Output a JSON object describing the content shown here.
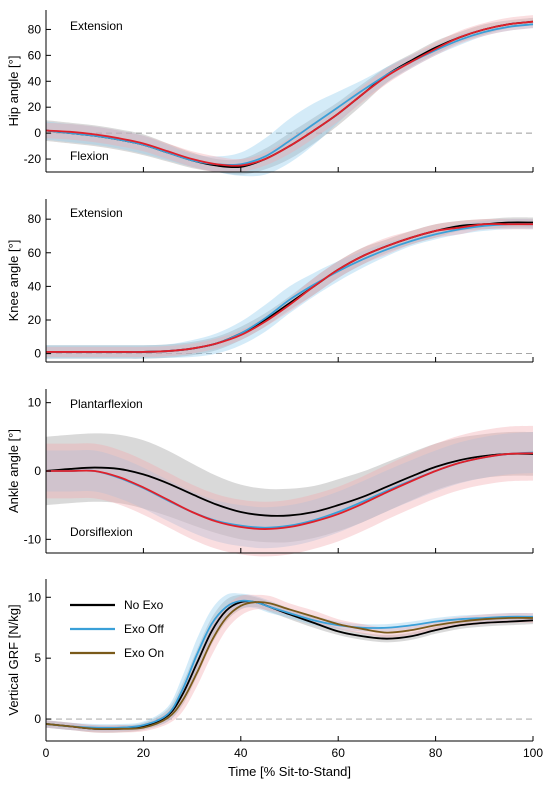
{
  "chart_data": [
    {
      "type": "line",
      "ylabel": "Hip angle [°]",
      "xlabel": "",
      "xlim": [
        0,
        100
      ],
      "ylim": [
        -30,
        95
      ],
      "yticks": [
        -20,
        0,
        20,
        40,
        60,
        80
      ],
      "zero_line": true,
      "annotations": [
        {
          "text": "Extension",
          "pos": "top-left"
        },
        {
          "text": "Flexion",
          "pos": "bottom-left"
        }
      ],
      "x": [
        0,
        5,
        10,
        15,
        20,
        25,
        30,
        35,
        40,
        45,
        50,
        55,
        60,
        65,
        70,
        75,
        80,
        85,
        90,
        95,
        100
      ],
      "series": [
        {
          "name": "No Exo",
          "color": "#000000",
          "band_color": "#9a9a9a",
          "values": [
            2,
            0,
            -2,
            -5,
            -9,
            -15,
            -21,
            -25,
            -26,
            -20,
            -10,
            2,
            15,
            30,
            45,
            56,
            66,
            74,
            80,
            84,
            86
          ],
          "band": [
            8,
            8,
            8,
            8,
            8,
            7,
            6,
            5,
            6,
            8,
            10,
            10,
            9,
            8,
            6,
            5,
            5,
            4,
            4,
            3,
            3
          ]
        },
        {
          "name": "Exo Off",
          "color": "#3aa0d8",
          "band_color": "#8fcbed",
          "values": [
            2,
            0,
            -2,
            -5,
            -9,
            -15,
            -21,
            -24,
            -24,
            -18,
            -6,
            7,
            20,
            33,
            45,
            55,
            64,
            72,
            78,
            82,
            84
          ],
          "band": [
            7,
            7,
            7,
            7,
            7,
            6,
            5,
            6,
            9,
            14,
            17,
            16,
            12,
            8,
            6,
            5,
            4,
            4,
            3,
            3,
            3
          ]
        },
        {
          "name": "Exo On",
          "color": "#e0202a",
          "band_color": "#f2a9ad",
          "values": [
            2,
            1,
            -1,
            -4,
            -8,
            -14,
            -20,
            -24,
            -25,
            -20,
            -10,
            2,
            15,
            30,
            44,
            55,
            65,
            74,
            80,
            84,
            86
          ],
          "band": [
            6,
            6,
            6,
            6,
            6,
            6,
            6,
            6,
            5,
            5,
            6,
            6,
            6,
            6,
            6,
            5,
            5,
            5,
            5,
            5,
            5
          ]
        }
      ]
    },
    {
      "type": "line",
      "ylabel": "Knee angle [°]",
      "xlabel": "",
      "xlim": [
        0,
        100
      ],
      "ylim": [
        -5,
        92
      ],
      "yticks": [
        0,
        20,
        40,
        60,
        80
      ],
      "zero_line": true,
      "annotations": [
        {
          "text": "Extension",
          "pos": "top-left"
        }
      ],
      "x": [
        0,
        5,
        10,
        15,
        20,
        25,
        30,
        35,
        40,
        45,
        50,
        55,
        60,
        65,
        70,
        75,
        80,
        85,
        90,
        95,
        100
      ],
      "series": [
        {
          "name": "No Exo",
          "color": "#000000",
          "band_color": "#9a9a9a",
          "values": [
            1,
            1,
            1,
            1,
            1,
            1.5,
            3,
            6,
            12,
            20,
            30,
            40,
            50,
            58,
            64,
            69,
            73,
            76,
            77,
            78,
            78
          ],
          "band": [
            4,
            4,
            4,
            4,
            4,
            4,
            4,
            4,
            4,
            4,
            4,
            5,
            5,
            5,
            4,
            4,
            4,
            3,
            3,
            3,
            3
          ]
        },
        {
          "name": "Exo Off",
          "color": "#3aa0d8",
          "band_color": "#8fcbed",
          "values": [
            1,
            1,
            1,
            1,
            1,
            1.5,
            3,
            6,
            12,
            21,
            32,
            41,
            49,
            56,
            62,
            67,
            71,
            74,
            76,
            77,
            77
          ],
          "band": [
            4,
            4,
            4,
            4,
            4,
            4,
            5,
            6,
            7,
            8,
            8,
            7,
            6,
            5,
            4,
            3,
            3,
            3,
            3,
            3,
            3
          ]
        },
        {
          "name": "Exo On",
          "color": "#e0202a",
          "band_color": "#f2a9ad",
          "values": [
            1,
            1,
            1,
            1,
            1,
            1.5,
            3,
            6,
            11,
            19,
            29,
            40,
            50,
            58,
            64,
            69,
            73,
            75,
            77,
            77,
            77
          ],
          "band": [
            3,
            3,
            3,
            3,
            3,
            3,
            3,
            3,
            3,
            3,
            4,
            5,
            5,
            5,
            5,
            4,
            4,
            4,
            3,
            3,
            3
          ]
        }
      ]
    },
    {
      "type": "line",
      "ylabel": "Ankle angle [°]",
      "xlabel": "",
      "xlim": [
        0,
        100
      ],
      "ylim": [
        -12,
        12
      ],
      "yticks": [
        -10,
        0,
        10
      ],
      "zero_line": false,
      "annotations": [
        {
          "text": "Plantarflexion",
          "pos": "top-left"
        },
        {
          "text": "Dorsiflexion",
          "pos": "bottom-left"
        }
      ],
      "x": [
        0,
        5,
        10,
        15,
        20,
        25,
        30,
        35,
        40,
        45,
        50,
        55,
        60,
        65,
        70,
        75,
        80,
        85,
        90,
        95,
        100
      ],
      "series": [
        {
          "name": "No Exo",
          "color": "#000000",
          "band_color": "#9a9a9a",
          "values": [
            0,
            0.3,
            0.5,
            0.3,
            -0.5,
            -1.8,
            -3.4,
            -4.9,
            -6,
            -6.5,
            -6.5,
            -6,
            -5,
            -3.8,
            -2.3,
            -0.8,
            0.6,
            1.6,
            2.2,
            2.5,
            2.5
          ],
          "band": [
            5,
            5,
            5,
            5,
            5,
            4.8,
            4.5,
            4.2,
            4,
            3.9,
            3.9,
            3.8,
            3.8,
            3.7,
            3.6,
            3.5,
            3.4,
            3.3,
            3.2,
            3.2,
            3.2
          ]
        },
        {
          "name": "Exo Off",
          "color": "#3aa0d8",
          "band_color": "#8fcbed",
          "values": [
            0,
            0,
            0,
            -1,
            -2.5,
            -4.3,
            -6,
            -7.3,
            -8,
            -8.3,
            -8,
            -7.2,
            -6,
            -4.5,
            -2.9,
            -1.4,
            0,
            1.2,
            2,
            2.5,
            2.7
          ],
          "band": [
            3,
            3,
            3,
            3,
            3,
            3,
            3,
            3,
            3,
            3,
            3,
            3,
            3,
            3,
            3,
            3,
            3,
            3,
            3,
            3,
            3
          ]
        },
        {
          "name": "Exo On",
          "color": "#e0202a",
          "band_color": "#f2a9ad",
          "values": [
            0,
            0,
            0,
            -0.9,
            -2.4,
            -4.2,
            -6,
            -7.4,
            -8.2,
            -8.5,
            -8.2,
            -7.4,
            -6.3,
            -4.8,
            -3.1,
            -1.5,
            0,
            1.2,
            2,
            2.5,
            2.6
          ],
          "band": [
            4,
            4,
            4,
            4,
            4,
            4,
            4,
            4,
            4,
            4,
            4,
            4,
            4,
            4,
            4,
            4,
            4,
            4,
            4,
            4,
            4
          ]
        }
      ]
    },
    {
      "type": "line",
      "ylabel": "Vertical GRF [N/kg]",
      "xlabel": "Time [% Sit-to-Stand]",
      "xlim": [
        0,
        100
      ],
      "ylim": [
        -1.8,
        11.5
      ],
      "yticks": [
        0,
        5,
        10
      ],
      "xticks": [
        0,
        20,
        40,
        60,
        80,
        100
      ],
      "zero_line": true,
      "legend": "top-left",
      "x": [
        0,
        5,
        10,
        15,
        20,
        25,
        28,
        31,
        34,
        37,
        40,
        43,
        46,
        50,
        55,
        60,
        65,
        70,
        75,
        80,
        85,
        90,
        95,
        100
      ],
      "series": [
        {
          "name": "No Exo",
          "color": "#000000",
          "band_color": "#9a9a9a",
          "values": [
            -0.4,
            -0.6,
            -0.8,
            -0.8,
            -0.6,
            0.3,
            2.0,
            4.6,
            7.2,
            8.9,
            9.6,
            9.6,
            9.2,
            8.6,
            7.9,
            7.2,
            6.8,
            6.6,
            6.8,
            7.3,
            7.7,
            7.9,
            8.0,
            8.1
          ],
          "band": [
            0.3,
            0.3,
            0.3,
            0.3,
            0.3,
            0.5,
            0.9,
            1.1,
            1.1,
            0.9,
            0.6,
            0.4,
            0.4,
            0.4,
            0.4,
            0.3,
            0.3,
            0.3,
            0.3,
            0.3,
            0.3,
            0.3,
            0.3,
            0.3
          ]
        },
        {
          "name": "Exo Off",
          "color": "#3aa0d8",
          "band_color": "#8fcbed",
          "values": [
            -0.4,
            -0.6,
            -0.7,
            -0.7,
            -0.5,
            0.4,
            2.4,
            5.3,
            7.8,
            9.2,
            9.7,
            9.6,
            9.2,
            8.7,
            8.1,
            7.7,
            7.5,
            7.5,
            7.7,
            8.0,
            8.2,
            8.3,
            8.4,
            8.4
          ],
          "band": [
            0.3,
            0.3,
            0.3,
            0.3,
            0.3,
            0.6,
            1.1,
            1.3,
            1.2,
            1.0,
            0.6,
            0.5,
            0.5,
            0.4,
            0.4,
            0.3,
            0.3,
            0.3,
            0.3,
            0.3,
            0.3,
            0.3,
            0.3,
            0.3
          ]
        },
        {
          "name": "Exo On",
          "color": "#7a5a1a",
          "band_color": "#f2a9ad",
          "values": [
            -0.4,
            -0.6,
            -0.8,
            -0.8,
            -0.7,
            0.1,
            1.5,
            3.8,
            6.4,
            8.3,
            9.3,
            9.6,
            9.5,
            9.0,
            8.4,
            7.8,
            7.4,
            7.1,
            7.3,
            7.7,
            8.0,
            8.2,
            8.3,
            8.3
          ],
          "band": [
            0.3,
            0.3,
            0.3,
            0.3,
            0.3,
            0.5,
            0.9,
            1.1,
            1.2,
            1.0,
            0.8,
            0.6,
            0.6,
            0.5,
            0.5,
            0.4,
            0.4,
            0.4,
            0.4,
            0.4,
            0.4,
            0.4,
            0.4,
            0.4
          ]
        }
      ]
    }
  ]
}
